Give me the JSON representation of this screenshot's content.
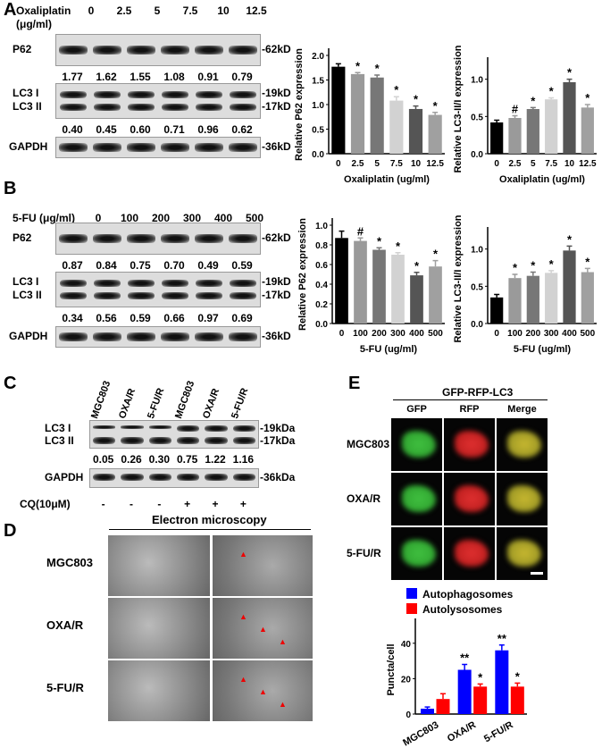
{
  "panels": {
    "a": "A",
    "b": "B",
    "c": "C",
    "d": "D",
    "e": "E"
  },
  "panel_a": {
    "treat_label": "Oxaliplatin",
    "unit_label": "(μg/ml)",
    "doses": [
      "0",
      "2.5",
      "5",
      "7.5",
      "10",
      "12.5"
    ],
    "p62_label": "P62",
    "p62_kd": "-62kD",
    "p62_values": [
      "1.77",
      "1.62",
      "1.55",
      "1.08",
      "0.91",
      "0.79"
    ],
    "lc3i": "LC3 I",
    "lc3ii": "LC3 II",
    "kd19": "-19kD",
    "kd17": "-17kD",
    "lc3_values": [
      "0.40",
      "0.45",
      "0.60",
      "0.71",
      "0.96",
      "0.62"
    ],
    "gapdh": "GAPDH",
    "gapdh_kd": "-36kD"
  },
  "panel_b": {
    "treat_label": "5-FU (μg/ml)",
    "doses": [
      "0",
      "100",
      "200",
      "300",
      "400",
      "500"
    ],
    "p62_label": "P62",
    "p62_kd": "-62kD",
    "p62_values": [
      "0.87",
      "0.84",
      "0.75",
      "0.70",
      "0.49",
      "0.59"
    ],
    "lc3i": "LC3 I",
    "lc3ii": "LC3 II",
    "kd19": "-19kD",
    "kd17": "-17kD",
    "lc3_values": [
      "0.34",
      "0.56",
      "0.59",
      "0.66",
      "0.97",
      "0.69"
    ],
    "gapdh": "GAPDH",
    "gapdh_kd": "-36kD"
  },
  "panel_c": {
    "columns": [
      "MGC803",
      "OXA/R",
      "5-FU/R",
      "MGC803",
      "OXA/R",
      "5-FU/R"
    ],
    "lc3i": "LC3 I",
    "lc3ii": "LC3 II",
    "kd19": "-19kDa",
    "kd17": "-17kDa",
    "values": [
      "0.05",
      "0.26",
      "0.30",
      "0.75",
      "1.22",
      "1.16"
    ],
    "gapdh": "GAPDH",
    "gapdh_kd": "-36kDa",
    "cq_label": "CQ(10μM)",
    "cq": [
      "-",
      "-",
      "-",
      "+",
      "+",
      "+"
    ]
  },
  "panel_d": {
    "title": "Electron microscopy",
    "rows": [
      "MGC803",
      "OXA/R",
      "5-FU/R"
    ]
  },
  "panel_e": {
    "title": "GFP-RFP-LC3",
    "columns": [
      "GFP",
      "RFP",
      "Merge"
    ],
    "rows": [
      "MGC803",
      "OXA/R",
      "5-FU/R"
    ]
  },
  "colors": {
    "blue": "#0000ff",
    "red": "#ff0000",
    "bars_gray": [
      "#000000",
      "#9a9a9a",
      "#777777",
      "#d2d2d2",
      "#555555",
      "#a0a0a0"
    ]
  },
  "chart_data": [
    {
      "id": "a1",
      "type": "bar",
      "categories": [
        "0",
        "2.5",
        "5",
        "7.5",
        "10",
        "12.5"
      ],
      "values": [
        1.77,
        1.62,
        1.55,
        1.08,
        0.91,
        0.79
      ],
      "errors": [
        0.06,
        0.03,
        0.05,
        0.08,
        0.06,
        0.05
      ],
      "marks": [
        "",
        "*",
        "*",
        "*",
        "*",
        "*"
      ],
      "xlabel": "Oxaliplatin (ug/ml)",
      "ylabel": "Relative P62 expression",
      "ylim": [
        0,
        2.0
      ],
      "yticks": [
        "0.0",
        "0.5",
        "1.0",
        "1.5",
        "2.0"
      ]
    },
    {
      "id": "a2",
      "type": "bar",
      "categories": [
        "0",
        "2.5",
        "5",
        "7.5",
        "10",
        "12.5"
      ],
      "values": [
        0.42,
        0.48,
        0.6,
        0.73,
        0.96,
        0.62
      ],
      "errors": [
        0.03,
        0.03,
        0.02,
        0.02,
        0.04,
        0.04
      ],
      "marks": [
        "",
        "#",
        "*",
        "*",
        "*",
        "*"
      ],
      "xlabel": "Oxaliplatin (ug/ml)",
      "ylabel": "Relative LC3-II/I expression",
      "ylim": [
        0,
        1.2
      ],
      "yticks": [
        "0.0",
        "0.5",
        "1.0"
      ]
    },
    {
      "id": "b1",
      "type": "bar",
      "categories": [
        "0",
        "100",
        "200",
        "300",
        "400",
        "500"
      ],
      "values": [
        0.87,
        0.84,
        0.75,
        0.7,
        0.49,
        0.58
      ],
      "errors": [
        0.07,
        0.03,
        0.02,
        0.02,
        0.03,
        0.06
      ],
      "marks": [
        "",
        "#",
        "*",
        "*",
        "*",
        "*"
      ],
      "xlabel": "5-FU (ug/ml)",
      "ylabel": "Relative P62 expression",
      "ylim": [
        0,
        1.0
      ],
      "yticks": [
        "0.0",
        "0.2",
        "0.4",
        "0.6",
        "0.8",
        "1.0"
      ]
    },
    {
      "id": "b2",
      "type": "bar",
      "categories": [
        "0",
        "100",
        "200",
        "300",
        "400",
        "500"
      ],
      "values": [
        0.35,
        0.61,
        0.64,
        0.68,
        0.98,
        0.69
      ],
      "errors": [
        0.04,
        0.05,
        0.05,
        0.03,
        0.06,
        0.05
      ],
      "marks": [
        "",
        "*",
        "*",
        "*",
        "*",
        "*"
      ],
      "xlabel": "5-FU (ug/ml)",
      "ylabel": "Relative LC3-II/I expression",
      "ylim": [
        0,
        1.2
      ],
      "yticks": [
        "0.0",
        "0.5",
        "1.0"
      ]
    },
    {
      "id": "e",
      "type": "bar",
      "categories": [
        "MGC803",
        "OXA/R",
        "5-FU/R"
      ],
      "series": [
        {
          "name": "Autophagosomes",
          "values": [
            3,
            25,
            36
          ],
          "errors": [
            1,
            3,
            3
          ],
          "marks": [
            "",
            "**",
            "**"
          ]
        },
        {
          "name": "Autolysosomes",
          "values": [
            8.5,
            15.5,
            15.5
          ],
          "errors": [
            3,
            1.5,
            2
          ],
          "marks": [
            "",
            "*",
            "*"
          ]
        }
      ],
      "ylabel": "Puncta/cell",
      "ylim": [
        0,
        50
      ],
      "yticks": [
        "0",
        "20",
        "40"
      ],
      "legend": "top"
    }
  ]
}
